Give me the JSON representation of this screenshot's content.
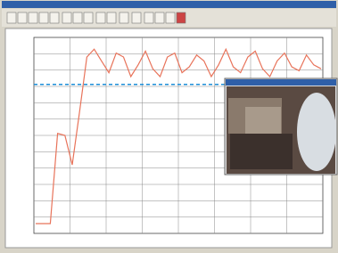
{
  "chart_data": {
    "type": "line",
    "series": [
      {
        "color": "#e8735a",
        "values": [
          5,
          5,
          5,
          51,
          50,
          35,
          62,
          90,
          94,
          88,
          82,
          92,
          90,
          80,
          86,
          93,
          84,
          80,
          90,
          92,
          82,
          85,
          91,
          88,
          80,
          86,
          94,
          85,
          82,
          90,
          93,
          84,
          80,
          88,
          92,
          85,
          83,
          91,
          86,
          84
        ]
      }
    ],
    "ylim": [
      0,
      100
    ],
    "threshold": 76,
    "threshold_color": "#1e8fd8",
    "grid": true
  }
}
